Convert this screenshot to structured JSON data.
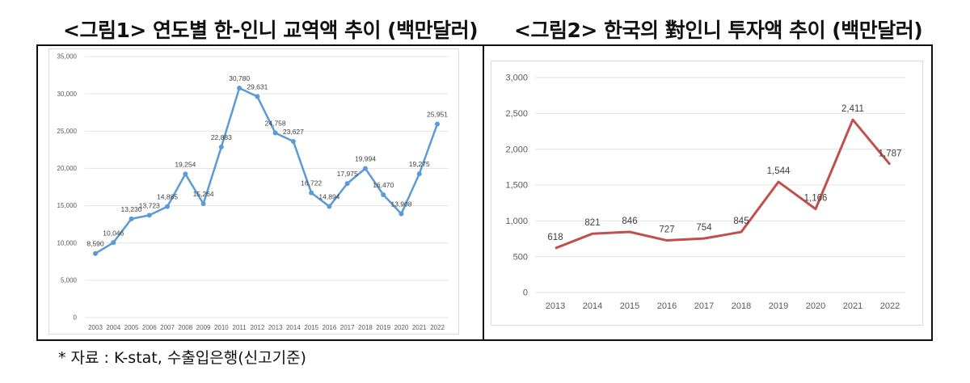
{
  "figure1": {
    "title": "<그림1> 연도별 한-인니 교역액 추이 (백만달러)"
  },
  "figure2": {
    "title": "<그림2> 한국의 對인니 투자액 추이 (백만달러)"
  },
  "footnote": "* 자료 : K-stat, 수출입은행(신고기준)",
  "chart_data": [
    {
      "type": "line",
      "categories": [
        "2003",
        "2004",
        "2005",
        "2006",
        "2007",
        "2008",
        "2009",
        "2010",
        "2011",
        "2012",
        "2013",
        "2014",
        "2015",
        "2016",
        "2017",
        "2018",
        "2019",
        "2020",
        "2021",
        "2022"
      ],
      "values": [
        8590,
        10046,
        13230,
        13723,
        14885,
        19254,
        15264,
        22883,
        30780,
        29631,
        24758,
        23627,
        16722,
        14894,
        17975,
        19994,
        16470,
        13908,
        19275,
        25951
      ],
      "labels": [
        "8,590",
        "10,046",
        "13,230",
        "13,723",
        "14,885",
        "19,254",
        "15,264",
        "22,883",
        "30,780",
        "29,631",
        "24,758",
        "23,627",
        "16,722",
        "14,894",
        "17,975",
        "19,994",
        "16,470",
        "13,908",
        "19,275",
        "25,951"
      ],
      "yticks": [
        "0",
        "5,000",
        "10,000",
        "15,000",
        "20,000",
        "25,000",
        "30,000",
        "35,000"
      ],
      "ylim": [
        0,
        35000
      ],
      "grid": true,
      "color": "#5b9bd5",
      "markers": true
    },
    {
      "type": "line",
      "categories": [
        "2013",
        "2014",
        "2015",
        "2016",
        "2017",
        "2018",
        "2019",
        "2020",
        "2021",
        "2022"
      ],
      "values": [
        618,
        821,
        846,
        727,
        754,
        845,
        1544,
        1166,
        2411,
        1787
      ],
      "labels": [
        "618",
        "821",
        "846",
        "727",
        "754",
        "845",
        "1,544",
        "1,166",
        "2,411",
        "1,787"
      ],
      "yticks": [
        "0",
        "500",
        "1,000",
        "1,500",
        "2,000",
        "2,500",
        "3,000"
      ],
      "ylim": [
        0,
        3000
      ],
      "grid": true,
      "color": "#c0504d",
      "markers": false
    }
  ]
}
